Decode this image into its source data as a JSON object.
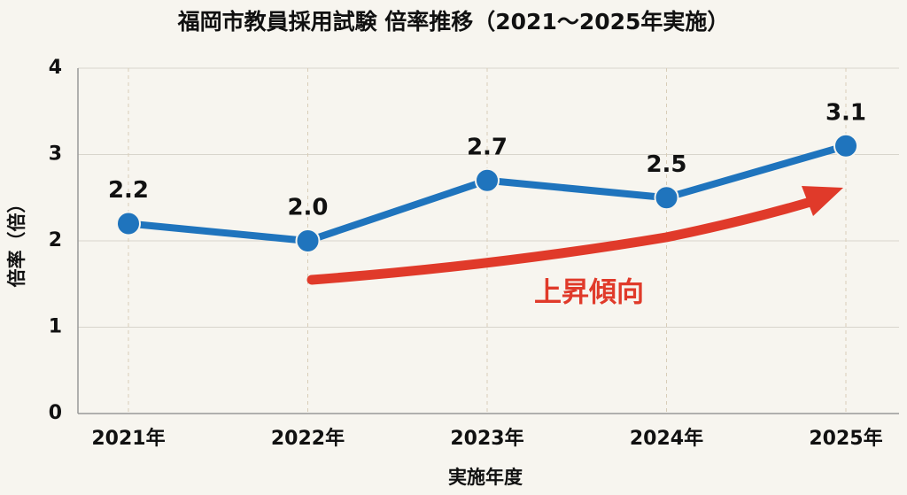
{
  "chart_data": {
    "type": "line",
    "title": "福岡市教員採用試験 倍率推移（2021〜2025年実施）",
    "x_label": "実施年度",
    "y_label": "倍率（倍）",
    "categories": [
      "2021年",
      "2022年",
      "2023年",
      "2024年",
      "2025年"
    ],
    "values": [
      2.2,
      2.0,
      2.7,
      2.5,
      3.1
    ],
    "value_labels": [
      "2.2",
      "2.0",
      "2.7",
      "2.5",
      "3.1"
    ],
    "color": "#1f74bd",
    "ylim": [
      0,
      4
    ],
    "yticks": [
      0,
      1,
      2,
      3,
      4
    ],
    "grid": true,
    "annotation": "上昇傾向"
  }
}
